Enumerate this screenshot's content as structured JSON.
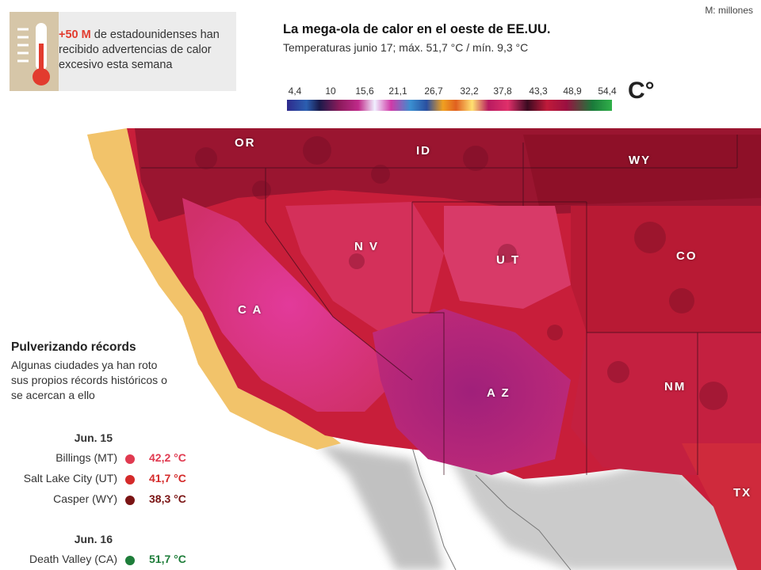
{
  "units_note": "M: millones",
  "callout": {
    "highlight": "+50 M",
    "text": "de estadounidenses han recibido advertencias de calor excesivo esta semana"
  },
  "title": "La mega-ola de calor en el oeste de EE.UU.",
  "subtitle": "Temperaturas junio 17; máx. 51,7 °C / mín. 9,3 °C",
  "scale": {
    "labels": [
      "4,4",
      "10",
      "15,6",
      "21,1",
      "26,7",
      "32,2",
      "37,8",
      "43,3",
      "48,9",
      "54,4"
    ],
    "unit": "C°"
  },
  "states": [
    "OR",
    "ID",
    "WY",
    "N V",
    "U T",
    "CO",
    "C A",
    "A Z",
    "NM",
    "TX"
  ],
  "records": {
    "title": "Pulverizando récords",
    "description": "Algunas ciudades ya han roto sus propios récords históricos o se acercan a ello",
    "groups": [
      {
        "date": "Jun. 15",
        "items": [
          {
            "city": "Billings (MT)",
            "temp": "42,2 °C",
            "color": "#e03a50"
          },
          {
            "city": "Salt Lake City (UT)",
            "temp": "41,7 °C",
            "color": "#d42a2a"
          },
          {
            "city": "Casper (WY)",
            "temp": "38,3 °C",
            "color": "#7a1414"
          }
        ]
      },
      {
        "date": "Jun. 16",
        "items": [
          {
            "city": "Death Valley (CA)",
            "temp": "51,7 °C",
            "color": "#1e7d3a"
          }
        ]
      }
    ]
  }
}
